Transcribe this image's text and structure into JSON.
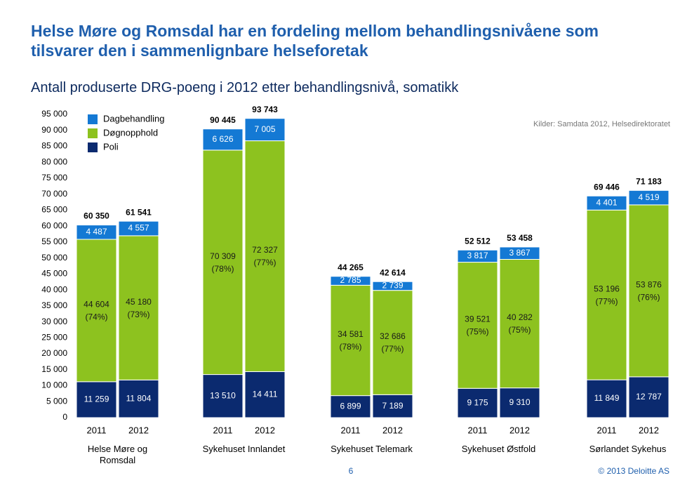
{
  "title": "Helse Møre og Romsdal har en fordeling mellom behandlingsnivåene som tilsvarer den i sammenlignbare helseforetak",
  "page_number": "6",
  "copyright": "© 2013 Deloitte AS",
  "chart_data": {
    "type": "stacked-bar",
    "title": "Antall produserte DRG-poeng i 2012 etter behandlingsnivå, somatikk",
    "source": "Kilder: Samdata 2012, Helsedirektoratet",
    "groups": [
      "Helse Møre og Romsdal",
      "Sykehuset Innlandet",
      "Sykehuset Telemark",
      "Sykehuset Østfold",
      "Sørlandet Sykehus"
    ],
    "categories": [
      "2011",
      "2012",
      "2011",
      "2012",
      "2011",
      "2012",
      "2011",
      "2012",
      "2011",
      "2012"
    ],
    "series": [
      {
        "name": "Poli",
        "color": "#0b2a6f",
        "values": [
          11259,
          11804,
          13510,
          14411,
          6899,
          7189,
          9175,
          9310,
          11849,
          12787
        ],
        "value_labels": [
          "11 259",
          "11 804",
          "13 510",
          "14 411",
          "6 899",
          "7 189",
          "9 175",
          "9 310",
          "11 849",
          "12 787"
        ]
      },
      {
        "name": "Døgnopphold",
        "color": "#8dc21f",
        "values": [
          44604,
          45180,
          70309,
          72327,
          34581,
          32686,
          39521,
          40282,
          53196,
          53876
        ],
        "value_labels": [
          "44 604",
          "45 180",
          "70 309",
          "72 327",
          "34 581",
          "32 686",
          "39 521",
          "40 282",
          "53 196",
          "53 876"
        ],
        "share_labels": [
          "(74%)",
          "(73%)",
          "(78%)",
          "(77%)",
          "(78%)",
          "(77%)",
          "(75%)",
          "(75%)",
          "(77%)",
          "(76%)"
        ]
      },
      {
        "name": "Dagbehandling",
        "color": "#1479d4",
        "values": [
          4487,
          4557,
          6626,
          7005,
          2785,
          2739,
          3817,
          3867,
          4401,
          4519
        ],
        "value_labels": [
          "4 487",
          "4 557",
          "6 626",
          "7 005",
          "2 785",
          "2 739",
          "3 817",
          "3 867",
          "4 401",
          "4 519"
        ]
      }
    ],
    "totals": [
      60350,
      61541,
      90445,
      93743,
      44265,
      42614,
      52512,
      53458,
      69446,
      71183
    ],
    "total_labels": [
      "60 350",
      "61 541",
      "90 445",
      "93 743",
      "44 265",
      "42 614",
      "52 512",
      "53 458",
      "69 446",
      "71 183"
    ],
    "ylim": [
      0,
      95000
    ],
    "yticks": [
      0,
      {
        "value": 5000,
        "label": "5 000"
      },
      {
        "value": 10000,
        "label": "10 000"
      },
      {
        "value": 15000,
        "label": "15 000"
      },
      {
        "value": 20000,
        "label": "20 000"
      },
      {
        "value": 25000,
        "label": "25 000"
      },
      {
        "value": 30000,
        "label": "30 000"
      },
      {
        "value": 35000,
        "label": "35 000"
      },
      {
        "value": 40000,
        "label": "40 000"
      },
      {
        "value": 45000,
        "label": "45 000"
      },
      {
        "value": 50000,
        "label": "50 000"
      },
      {
        "value": 55000,
        "label": "55 000"
      },
      {
        "value": 60000,
        "label": "60 000"
      },
      {
        "value": 65000,
        "label": "65 000"
      },
      {
        "value": 70000,
        "label": "70 000"
      },
      {
        "value": 75000,
        "label": "75 000"
      },
      {
        "value": 80000,
        "label": "80 000"
      },
      {
        "value": 85000,
        "label": "85 000"
      },
      {
        "value": 90000,
        "label": "90 000"
      },
      {
        "value": 95000,
        "label": "95 000"
      }
    ],
    "grid": false
  }
}
